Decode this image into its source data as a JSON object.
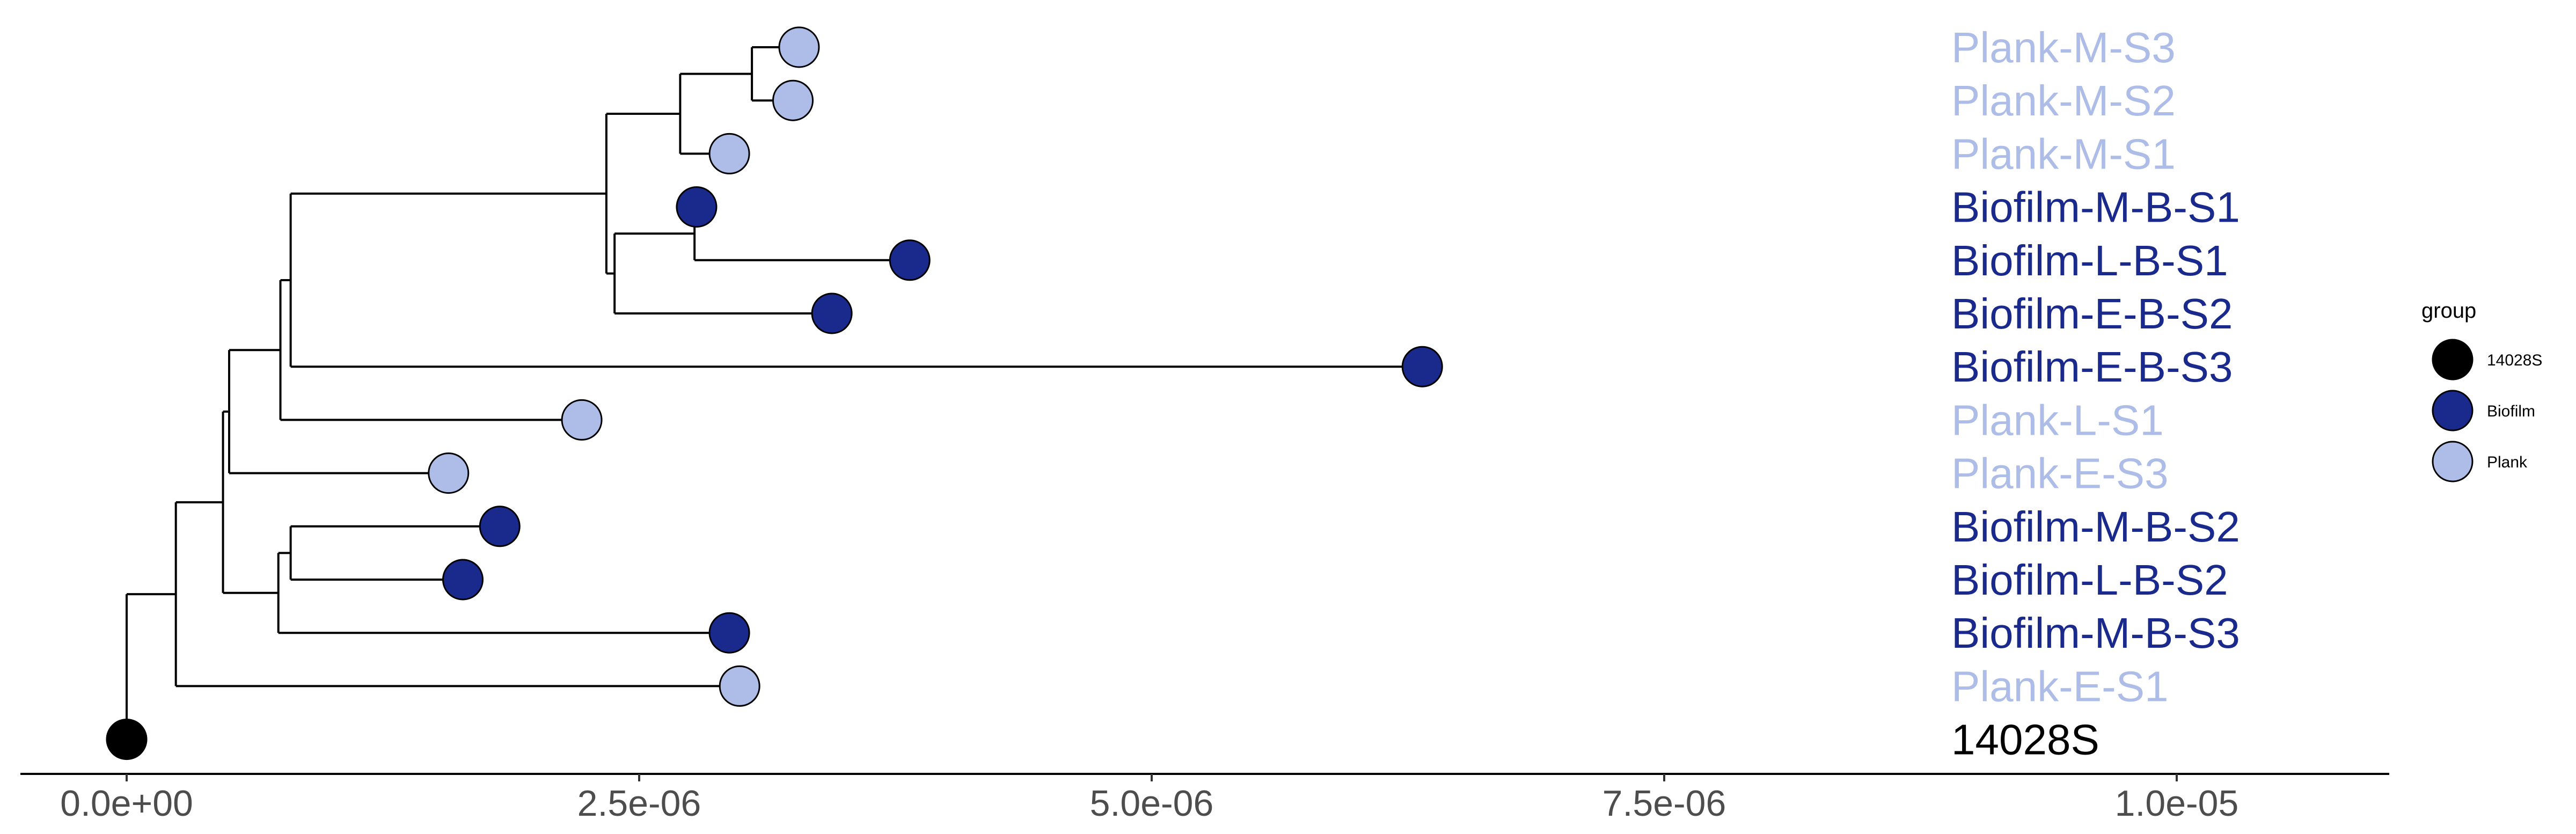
{
  "chart_data": {
    "type": "phylogenetic-tree",
    "x_ticks": [
      "0.0e+00",
      "2.5e-06",
      "5.0e-06",
      "7.5e-06",
      "1.0e-05"
    ],
    "x_tick_values": [
      0,
      2.5e-06,
      5e-06,
      7.5e-06,
      1e-05
    ],
    "xlim": [
      -5.2e-07,
      1.1e-05
    ],
    "legend": {
      "title": "group",
      "position": "right",
      "items": [
        {
          "label": "14028S",
          "color": "#000000"
        },
        {
          "label": "Biofilm",
          "color": "#1a2a8c"
        },
        {
          "label": "Plank",
          "color": "#adbde8"
        }
      ]
    },
    "tips": [
      {
        "label": "Plank-M-S3",
        "group": "Plank",
        "x": 3.28e-06
      },
      {
        "label": "Plank-M-S2",
        "group": "Plank",
        "x": 3.25e-06
      },
      {
        "label": "Plank-M-S1",
        "group": "Plank",
        "x": 2.94e-06
      },
      {
        "label": "Biofilm-M-B-S1",
        "group": "Biofilm",
        "x": 2.78e-06
      },
      {
        "label": "Biofilm-L-B-S1",
        "group": "Biofilm",
        "x": 3.82e-06
      },
      {
        "label": "Biofilm-E-B-S2",
        "group": "Biofilm",
        "x": 3.44e-06
      },
      {
        "label": "Biofilm-E-B-S3",
        "group": "Biofilm",
        "x": 6.32e-06
      },
      {
        "label": "Plank-L-S1",
        "group": "Plank",
        "x": 2.22e-06
      },
      {
        "label": "Plank-E-S3",
        "group": "Plank",
        "x": 1.57e-06
      },
      {
        "label": "Biofilm-M-B-S2",
        "group": "Biofilm",
        "x": 1.82e-06
      },
      {
        "label": "Biofilm-L-B-S2",
        "group": "Biofilm",
        "x": 1.64e-06
      },
      {
        "label": "Biofilm-M-B-S3",
        "group": "Biofilm",
        "x": 2.94e-06
      },
      {
        "label": "Plank-E-S1",
        "group": "Plank",
        "x": 2.99e-06
      },
      {
        "label": "14028S",
        "group": "14028S",
        "x": 0
      }
    ],
    "nodes": [
      {
        "x": 0,
        "children": [
          "t13",
          "n1"
        ]
      },
      {
        "x": 2.4e-07,
        "children": [
          "n2",
          "t12"
        ]
      },
      {
        "x": 4.7e-07,
        "children": [
          "n3",
          "n8"
        ]
      },
      {
        "x": 5e-07,
        "children": [
          "n4",
          "t8"
        ]
      },
      {
        "x": 7.5e-07,
        "children": [
          "n5",
          "t7"
        ]
      },
      {
        "x": 8e-07,
        "children": [
          "n6",
          "t6"
        ]
      },
      {
        "x": 2.34e-06,
        "children": [
          "n7",
          "n9"
        ]
      },
      {
        "x": 2.7e-06,
        "children": [
          "n10",
          "t2"
        ]
      },
      {
        "x": 7.4e-07,
        "children": [
          "n11",
          "t11"
        ]
      },
      {
        "x": 2.38e-06,
        "children": [
          "n12",
          "t5"
        ]
      },
      {
        "x": 3.05e-06,
        "children": [
          "t0",
          "t1"
        ]
      },
      {
        "x": 8e-07,
        "children": [
          "t9",
          "t10"
        ]
      },
      {
        "x": 2.77e-06,
        "children": [
          "t3",
          "t4"
        ]
      }
    ]
  }
}
